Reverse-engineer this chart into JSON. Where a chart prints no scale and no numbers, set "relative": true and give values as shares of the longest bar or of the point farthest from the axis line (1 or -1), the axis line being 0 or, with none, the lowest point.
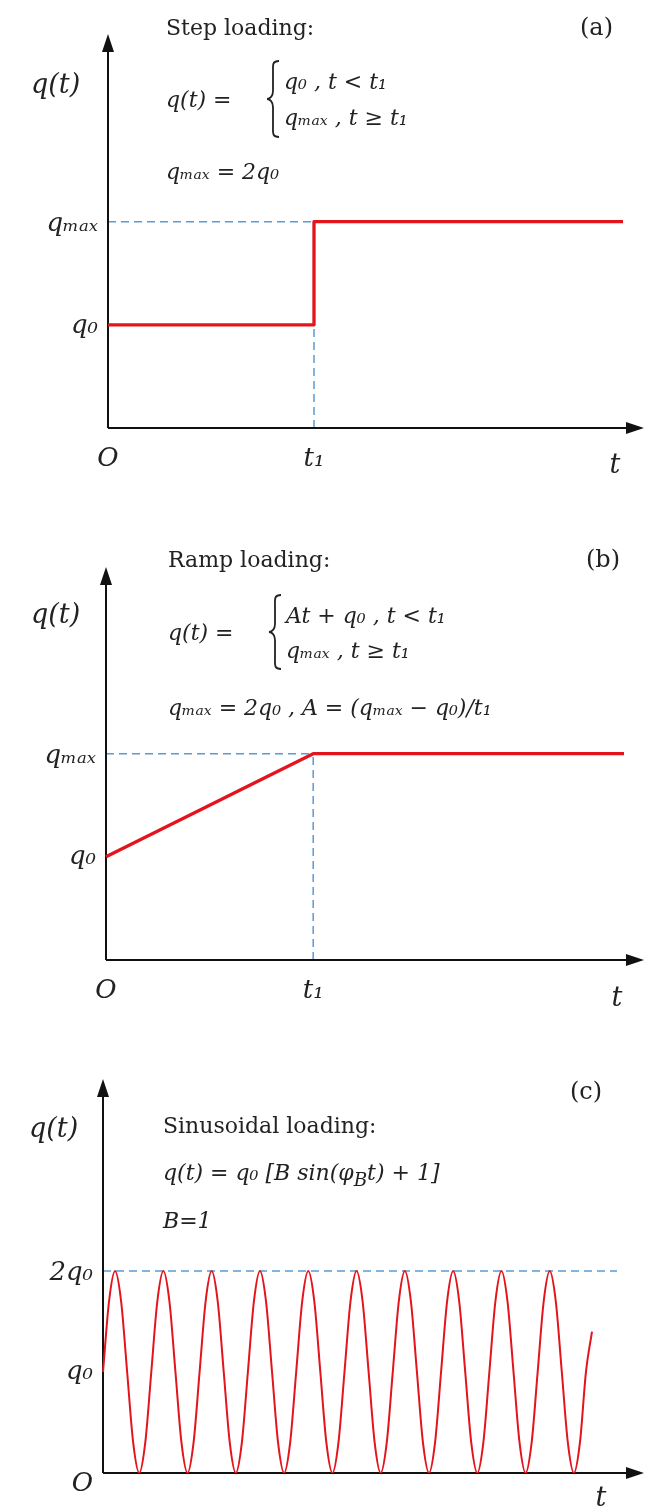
{
  "chart_data": [
    {
      "type": "step",
      "relative": true,
      "title": "Step loading:",
      "xlabel": "t",
      "ylabel": "q(t)",
      "annotations": [
        "(a)",
        "q(t) =",
        "q₀ , t < t₁",
        "qₘₐₓ , t ≥ t₁",
        "qₘₐₓ = 2q₀",
        "q₀",
        "qₘₐₓ"
      ],
      "categories": [
        "O",
        null,
        "t₁",
        null,
        null,
        null
      ],
      "series": [
        {
          "color": "#e3141b",
          "values": [
            0.5,
            0.5,
            1,
            1,
            1,
            1
          ]
        }
      ],
      "ref_lines": [
        {
          "axis": "x",
          "value": "t₁",
          "color": "#5b9bd5",
          "line_style": "dashed"
        },
        {
          "axis": "y",
          "value": 1,
          "color": "#5b9bd5",
          "line_style": "dashed"
        }
      ]
    },
    {
      "type": "line",
      "relative": true,
      "title": "Ramp loading:",
      "xlabel": "t",
      "ylabel": "q(t)",
      "annotations": [
        "(b)",
        "q(t) =",
        "At + q₀ , t < t₁",
        "qₘₐₓ , t ≥ t₁",
        "qₘₐₓ = 2q₀ , A = (qₘₐₓ − q₀)/t₁",
        "q₀",
        "qₘₐₓ"
      ],
      "categories": [
        "O",
        null,
        "t₁",
        null,
        null,
        null
      ],
      "series": [
        {
          "color": "#e3141b",
          "values": [
            0.5,
            0.75,
            1,
            1,
            1,
            1
          ]
        }
      ],
      "ref_lines": [
        {
          "axis": "x",
          "value": "t₁",
          "color": "#5b9bd5",
          "line_style": "dashed"
        },
        {
          "axis": "y",
          "value": 1,
          "color": "#5b9bd5",
          "line_style": "dashed"
        }
      ]
    },
    {
      "type": "line",
      "relative": true,
      "title": "Sinusoidal loading:",
      "xlabel": "t",
      "ylabel": "q(t)",
      "annotations": [
        "(c)",
        "q(t) = q₀ [B sin(φ$_{B}$t) + 1]",
        "B=1",
        "2q₀",
        "q₀",
        "O"
      ],
      "categories": [
        null,
        null,
        null,
        null,
        null,
        null,
        null,
        null,
        null,
        null,
        null,
        null,
        null,
        null,
        null,
        null,
        null,
        null,
        null,
        null,
        null,
        null,
        null,
        null,
        null,
        null,
        null,
        null,
        null,
        null,
        null,
        null,
        null,
        null,
        null,
        null,
        null,
        null,
        null,
        null,
        null,
        null,
        null,
        null,
        null,
        null,
        null,
        null,
        null,
        null,
        null,
        null,
        null,
        null,
        null,
        null,
        null,
        null,
        null,
        null,
        null,
        null,
        null,
        null,
        null,
        null,
        null,
        null,
        null,
        null,
        null,
        null,
        null,
        null,
        null,
        null,
        null,
        null,
        null,
        null,
        null,
        null
      ],
      "series": [
        {
          "color": "#e3141b",
          "values": [
            0.5,
            0.85,
            1,
            0.85,
            0.5,
            0.15,
            0,
            0.15,
            0.5,
            0.85,
            1,
            0.85,
            0.5,
            0.15,
            0,
            0.15,
            0.5,
            0.85,
            1,
            0.85,
            0.5,
            0.15,
            0,
            0.15,
            0.5,
            0.85,
            1,
            0.85,
            0.5,
            0.15,
            0,
            0.15,
            0.5,
            0.85,
            1,
            0.85,
            0.5,
            0.15,
            0,
            0.15,
            0.5,
            0.85,
            1,
            0.85,
            0.5,
            0.15,
            0,
            0.15,
            0.5,
            0.85,
            1,
            0.85,
            0.5,
            0.15,
            0,
            0.15,
            0.5,
            0.85,
            1,
            0.85,
            0.5,
            0.15,
            0,
            0.15,
            0.5,
            0.85,
            1,
            0.85,
            0.5,
            0.15,
            0,
            0.15,
            0.5,
            0.85,
            1,
            0.85,
            0.5,
            0.15,
            0,
            0.15,
            0.5,
            0.7
          ]
        }
      ],
      "ref_lines": [
        {
          "axis": "y",
          "value": 1,
          "color": "#5b9bd5",
          "line_style": "dashed"
        }
      ]
    }
  ]
}
